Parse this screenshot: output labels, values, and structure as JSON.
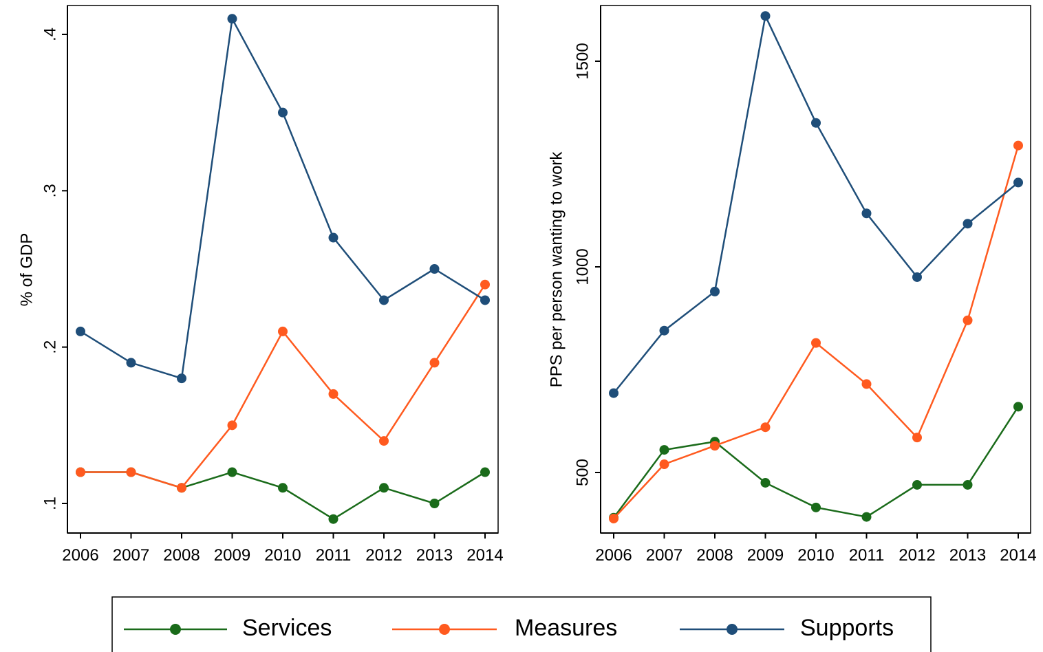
{
  "chart_data": [
    {
      "type": "line",
      "title": "",
      "xlabel": "",
      "ylabel": "% of GDP",
      "x": [
        2006,
        2007,
        2008,
        2009,
        2010,
        2011,
        2012,
        2013,
        2014
      ],
      "x_tick_labels": [
        "2006",
        "2007",
        "2008",
        "2009",
        "2010",
        "2011",
        "2012",
        "2013",
        "2014"
      ],
      "y_ticks": [
        0.1,
        0.2,
        0.3,
        0.4
      ],
      "y_tick_labels": [
        ".1",
        ".2",
        ".3",
        ".4"
      ],
      "ylim": [
        0.09,
        0.41
      ],
      "grid": false,
      "series": [
        {
          "name": "Services",
          "color": "#1a6b1a",
          "values": [
            0.12,
            0.12,
            0.11,
            0.12,
            0.11,
            0.09,
            0.11,
            0.1,
            0.12
          ]
        },
        {
          "name": "Measures",
          "color": "#ff5a1f",
          "values": [
            0.12,
            0.12,
            0.11,
            0.15,
            0.21,
            0.17,
            0.14,
            0.19,
            0.24
          ]
        },
        {
          "name": "Supports",
          "color": "#1f4e79",
          "values": [
            0.21,
            0.19,
            0.18,
            0.41,
            0.35,
            0.27,
            0.23,
            0.25,
            0.23
          ]
        }
      ]
    },
    {
      "type": "line",
      "title": "",
      "xlabel": "",
      "ylabel": "PPS per person wanting to work",
      "x": [
        2006,
        2007,
        2008,
        2009,
        2010,
        2011,
        2012,
        2013,
        2014
      ],
      "x_tick_labels": [
        "2006",
        "2007",
        "2008",
        "2009",
        "2010",
        "2011",
        "2012",
        "2013",
        "2014"
      ],
      "y_ticks": [
        500,
        1000,
        1500
      ],
      "y_tick_labels": [
        "500",
        "1000",
        "1500"
      ],
      "ylim": [
        388,
        1610
      ],
      "grid": false,
      "series": [
        {
          "name": "Services",
          "color": "#1a6b1a",
          "values": [
            390,
            555,
            575,
            475,
            415,
            392,
            470,
            470,
            660
          ]
        },
        {
          "name": "Measures",
          "color": "#ff5a1f",
          "values": [
            388,
            520,
            565,
            610,
            815,
            715,
            585,
            870,
            1295
          ]
        },
        {
          "name": "Supports",
          "color": "#1f4e79",
          "values": [
            693,
            845,
            940,
            1610,
            1350,
            1130,
            975,
            1105,
            1205
          ]
        }
      ]
    }
  ],
  "legend": {
    "placement": "bottom",
    "items": [
      {
        "label": "Services",
        "color": "#1a6b1a"
      },
      {
        "label": "Measures",
        "color": "#ff5a1f"
      },
      {
        "label": "Supports",
        "color": "#1f4e79"
      }
    ]
  }
}
